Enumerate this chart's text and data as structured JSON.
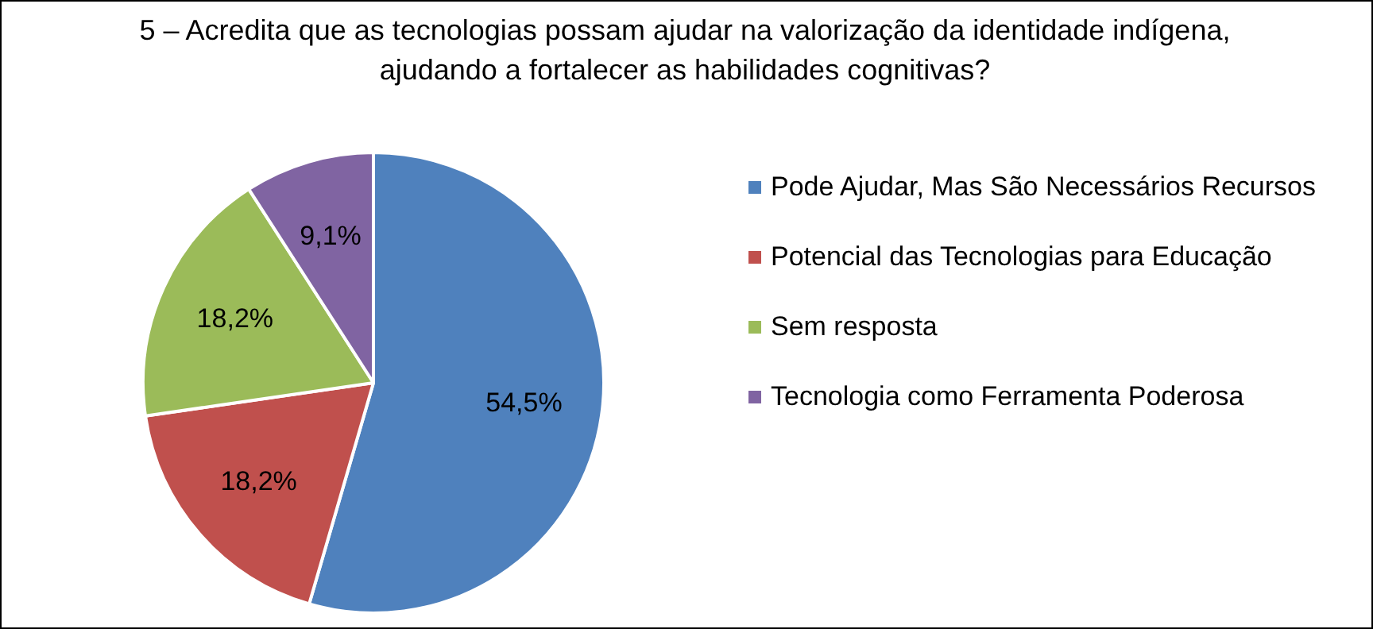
{
  "chart_data": {
    "type": "pie",
    "title": "5 – Acredita que as tecnologias possam ajudar na valorização da identidade indígena, ajudando a fortalecer as habilidades cognitivas?",
    "categories": [
      "Pode Ajudar, Mas São Necessários Recursos",
      "Potencial das Tecnologias para Educação",
      "Sem resposta",
      "Tecnologia como Ferramenta Poderosa"
    ],
    "values": [
      54.5,
      18.2,
      18.2,
      9.1
    ],
    "colors": [
      "#4f81bd",
      "#c0504d",
      "#9bbb59",
      "#8064a2"
    ],
    "value_labels": [
      "54,5%",
      "18,2%",
      "18,2%",
      "9,1%"
    ],
    "legend": "right"
  }
}
